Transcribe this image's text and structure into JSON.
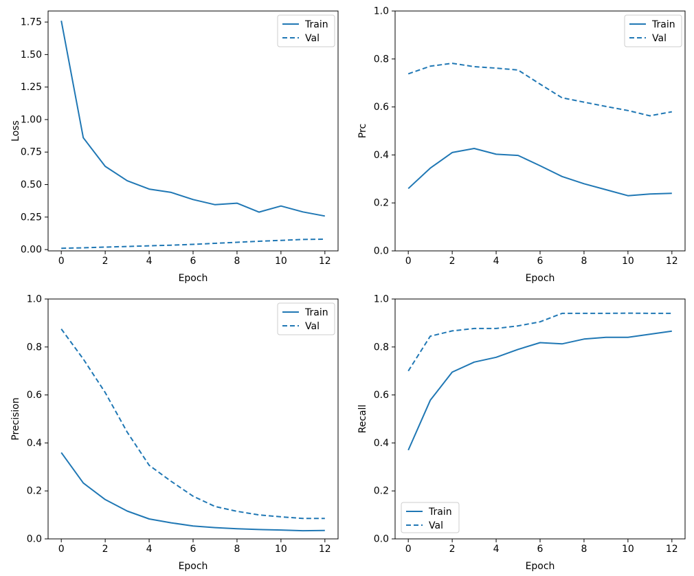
{
  "figure": {
    "background": "#ffffff",
    "accent_color": "#1f77b4",
    "text_color": "#000000",
    "spine_color": "#000000",
    "legend_border_color": "#cccccc",
    "legend_fill": "#ffffff"
  },
  "chart_data": [
    {
      "type": "line",
      "name": "loss",
      "title": "",
      "xlabel": "Epoch",
      "ylabel": "Loss",
      "x": [
        0,
        1,
        2,
        3,
        4,
        5,
        6,
        7,
        8,
        9,
        10,
        11,
        12
      ],
      "series": [
        {
          "name": "Train",
          "style": "solid",
          "values": [
            1.76,
            0.86,
            0.64,
            0.53,
            0.465,
            0.44,
            0.385,
            0.345,
            0.357,
            0.288,
            0.335,
            0.29,
            0.258
          ]
        },
        {
          "name": "Val",
          "style": "dashed",
          "values": [
            0.01,
            0.014,
            0.019,
            0.024,
            0.029,
            0.034,
            0.04,
            0.048,
            0.056,
            0.064,
            0.071,
            0.078,
            0.08
          ]
        }
      ],
      "xlim": [
        -0.6,
        12.6
      ],
      "ylim": [
        -0.01,
        1.835
      ],
      "xtick_values": [
        0,
        2,
        4,
        6,
        8,
        10,
        12
      ],
      "xtick_labels": [
        "0",
        "2",
        "4",
        "6",
        "8",
        "10",
        "12"
      ],
      "ytick_values": [
        0,
        0.25,
        0.5,
        0.75,
        1.0,
        1.25,
        1.5,
        1.75
      ],
      "ytick_labels": [
        "0.00",
        "0.25",
        "0.50",
        "0.75",
        "1.00",
        "1.25",
        "1.50",
        "1.75"
      ],
      "legend_position": "upper-right",
      "grid": false
    },
    {
      "type": "line",
      "name": "prc",
      "title": "",
      "xlabel": "Epoch",
      "ylabel": "Prc",
      "x": [
        0,
        1,
        2,
        3,
        4,
        5,
        6,
        7,
        8,
        9,
        10,
        11,
        12
      ],
      "series": [
        {
          "name": "Train",
          "style": "solid",
          "values": [
            0.26,
            0.345,
            0.41,
            0.427,
            0.403,
            0.398,
            0.355,
            0.31,
            0.28,
            0.255,
            0.23,
            0.237,
            0.24
          ]
        },
        {
          "name": "Val",
          "style": "dashed",
          "values": [
            0.738,
            0.77,
            0.782,
            0.768,
            0.762,
            0.754,
            0.695,
            0.638,
            0.62,
            0.602,
            0.585,
            0.563,
            0.58
          ]
        }
      ],
      "xlim": [
        -0.6,
        12.6
      ],
      "ylim": [
        0,
        1
      ],
      "xtick_values": [
        0,
        2,
        4,
        6,
        8,
        10,
        12
      ],
      "xtick_labels": [
        "0",
        "2",
        "4",
        "6",
        "8",
        "10",
        "12"
      ],
      "ytick_values": [
        0,
        0.2,
        0.4,
        0.6,
        0.8,
        1.0
      ],
      "ytick_labels": [
        "0.0",
        "0.2",
        "0.4",
        "0.6",
        "0.8",
        "1.0"
      ],
      "legend_position": "upper-right",
      "grid": false
    },
    {
      "type": "line",
      "name": "precision",
      "title": "",
      "xlabel": "Epoch",
      "ylabel": "Precision",
      "x": [
        0,
        1,
        2,
        3,
        4,
        5,
        6,
        7,
        8,
        9,
        10,
        11,
        12
      ],
      "series": [
        {
          "name": "Train",
          "style": "solid",
          "values": [
            0.36,
            0.233,
            0.164,
            0.116,
            0.083,
            0.067,
            0.054,
            0.047,
            0.042,
            0.039,
            0.037,
            0.034,
            0.035
          ]
        },
        {
          "name": "Val",
          "style": "dashed",
          "values": [
            0.875,
            0.75,
            0.61,
            0.445,
            0.307,
            0.24,
            0.178,
            0.135,
            0.115,
            0.1,
            0.092,
            0.085,
            0.085
          ]
        }
      ],
      "xlim": [
        -0.6,
        12.6
      ],
      "ylim": [
        0,
        1
      ],
      "xtick_values": [
        0,
        2,
        4,
        6,
        8,
        10,
        12
      ],
      "xtick_labels": [
        "0",
        "2",
        "4",
        "6",
        "8",
        "10",
        "12"
      ],
      "ytick_values": [
        0,
        0.2,
        0.4,
        0.6,
        0.8,
        1.0
      ],
      "ytick_labels": [
        "0.0",
        "0.2",
        "0.4",
        "0.6",
        "0.8",
        "1.0"
      ],
      "legend_position": "upper-right",
      "grid": false
    },
    {
      "type": "line",
      "name": "recall",
      "title": "",
      "xlabel": "Epoch",
      "ylabel": "Recall",
      "x": [
        0,
        1,
        2,
        3,
        4,
        5,
        6,
        7,
        8,
        9,
        10,
        11,
        12
      ],
      "series": [
        {
          "name": "Train",
          "style": "solid",
          "values": [
            0.37,
            0.578,
            0.695,
            0.737,
            0.757,
            0.79,
            0.818,
            0.813,
            0.833,
            0.84,
            0.84,
            0.853,
            0.866
          ]
        },
        {
          "name": "Val",
          "style": "dashed",
          "values": [
            0.7,
            0.845,
            0.867,
            0.877,
            0.877,
            0.888,
            0.905,
            0.94,
            0.94,
            0.94,
            0.941,
            0.94,
            0.94
          ]
        }
      ],
      "xlim": [
        -0.6,
        12.6
      ],
      "ylim": [
        0,
        1
      ],
      "xtick_values": [
        0,
        2,
        4,
        6,
        8,
        10,
        12
      ],
      "xtick_labels": [
        "0",
        "2",
        "4",
        "6",
        "8",
        "10",
        "12"
      ],
      "ytick_values": [
        0,
        0.2,
        0.4,
        0.6,
        0.8,
        1.0
      ],
      "ytick_labels": [
        "0.0",
        "0.2",
        "0.4",
        "0.6",
        "0.8",
        "1.0"
      ],
      "legend_position": "lower-left",
      "grid": false
    }
  ]
}
